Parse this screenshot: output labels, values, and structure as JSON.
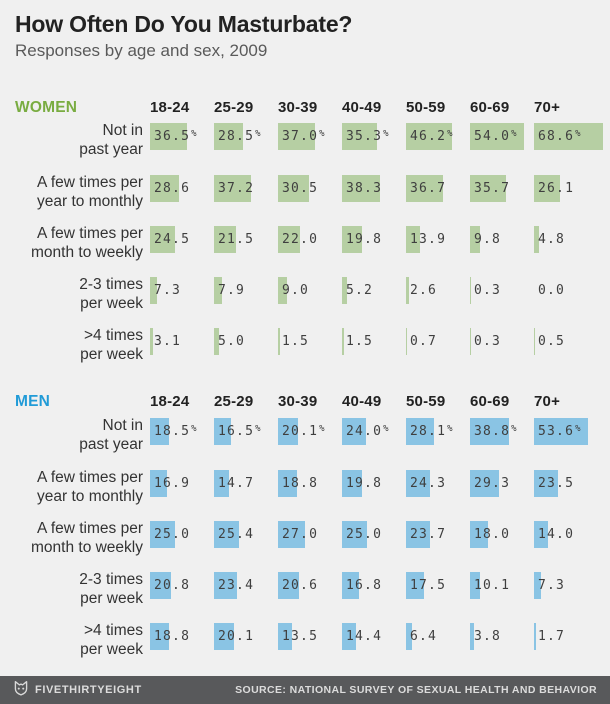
{
  "header": {
    "title": "How Often Do You Masturbate?",
    "subtitle": "Responses by age and sex, 2009"
  },
  "footer": {
    "brand": "FIVETHIRTYEIGHT",
    "source": "SOURCE: NATIONAL SURVEY OF SEXUAL HEALTH AND BEHAVIOR",
    "logo_icon": "fox-icon"
  },
  "colors": {
    "background": "#f0f0f0",
    "title_text": "#222222",
    "subtitle_text": "#5a5a5a",
    "number_text": "#3f3f3f",
    "row_label_text": "#333333",
    "age_header_text": "#222222",
    "women_accent": "#79ac41",
    "women_bar": "#b6cfa3",
    "men_accent": "#219bd7",
    "men_bar": "#8ac4e4",
    "footer_bg": "#58595b",
    "footer_text": "#dcdcdc"
  },
  "chart_data": {
    "type": "bar",
    "title": "How Often Do You Masturbate?",
    "subtitle": "Responses by age and sex, 2009",
    "unit": "percent",
    "orientation": "horizontal",
    "categories": [
      "18-24",
      "25-29",
      "30-39",
      "40-49",
      "50-59",
      "60-69",
      "70+"
    ],
    "row_categories": [
      "Not in past year",
      "A few times per year to monthly",
      "A few times per month to weekly",
      "2-3 times per week",
      ">4 times per week"
    ],
    "sections": [
      {
        "name": "WOMEN",
        "accent_color": "#79ac41",
        "bar_color": "#b6cfa3",
        "rows": [
          {
            "label_lines": [
              "Not in",
              "past year"
            ],
            "show_percent": true,
            "values": [
              36.5,
              28.5,
              37.0,
              35.3,
              46.2,
              54.0,
              68.6
            ]
          },
          {
            "label_lines": [
              "A few times per",
              "year to monthly"
            ],
            "show_percent": false,
            "values": [
              28.6,
              37.2,
              30.5,
              38.3,
              36.7,
              35.7,
              26.1
            ]
          },
          {
            "label_lines": [
              "A few times per",
              "month to weekly"
            ],
            "show_percent": false,
            "values": [
              24.5,
              21.5,
              22.0,
              19.8,
              13.9,
              9.8,
              4.8
            ]
          },
          {
            "label_lines": [
              "2-3 times",
              "per week"
            ],
            "show_percent": false,
            "values": [
              7.3,
              7.9,
              9.0,
              5.2,
              2.6,
              0.3,
              0.0
            ]
          },
          {
            "label_lines": [
              ">4 times",
              "per week"
            ],
            "show_percent": false,
            "values": [
              3.1,
              5.0,
              1.5,
              1.5,
              0.7,
              0.3,
              0.5
            ]
          }
        ]
      },
      {
        "name": "MEN",
        "accent_color": "#219bd7",
        "bar_color": "#8ac4e4",
        "rows": [
          {
            "label_lines": [
              "Not in",
              "past year"
            ],
            "show_percent": true,
            "values": [
              18.5,
              16.5,
              20.1,
              24.0,
              28.1,
              38.8,
              53.6
            ]
          },
          {
            "label_lines": [
              "A few times per",
              "year to monthly"
            ],
            "show_percent": false,
            "values": [
              16.9,
              14.7,
              18.8,
              19.8,
              24.3,
              29.3,
              23.5
            ]
          },
          {
            "label_lines": [
              "A few times per",
              "month to weekly"
            ],
            "show_percent": false,
            "values": [
              25.0,
              25.4,
              27.0,
              25.0,
              23.7,
              18.0,
              14.0
            ]
          },
          {
            "label_lines": [
              "2-3 times",
              "per week"
            ],
            "show_percent": false,
            "values": [
              20.8,
              23.4,
              20.6,
              16.8,
              17.5,
              10.1,
              7.3
            ]
          },
          {
            "label_lines": [
              ">4 times",
              "per week"
            ],
            "show_percent": false,
            "values": [
              18.8,
              20.1,
              13.5,
              14.4,
              6.4,
              3.8,
              1.7
            ]
          }
        ]
      }
    ],
    "value_labels_shown": true,
    "axis_shown": false,
    "grid": false,
    "legend": "none",
    "xlim": [
      0,
      70
    ]
  }
}
